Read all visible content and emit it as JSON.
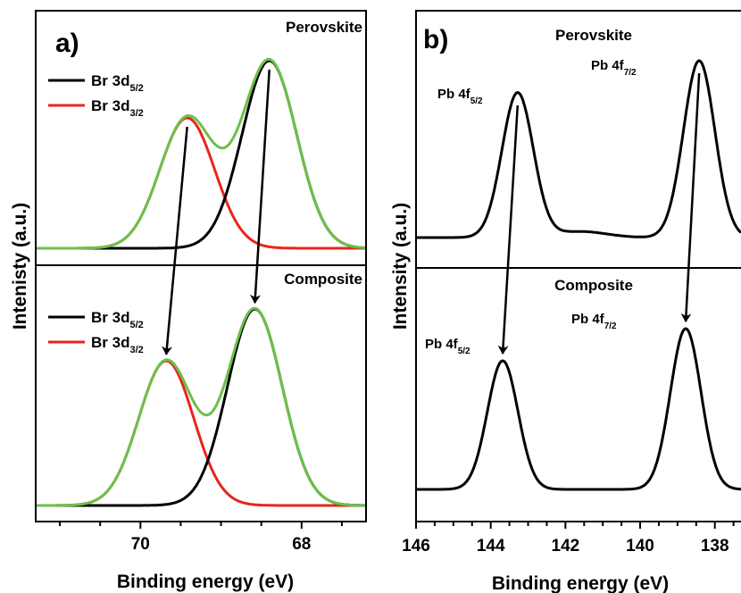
{
  "colors": {
    "sum": "#6cc04a",
    "d52": "#000000",
    "d32": "#e8251c",
    "frame": "#000000"
  },
  "chart_data": [
    {
      "panel_label": "a)",
      "type": "line",
      "xlabel": "Binding energy (eV)",
      "ylabel": "Intenisty (a.u.)",
      "xlim": [
        71.3,
        67.2
      ],
      "x_direction": "reversed",
      "xticks": [
        {
          "value": 70,
          "label": "70"
        },
        {
          "value": 68,
          "label": "68"
        }
      ],
      "subpanels": [
        {
          "title": "Perovskite",
          "legend": [
            {
              "series": "d52",
              "label": "Br 3d",
              "sub": "5/2"
            },
            {
              "series": "d32",
              "label": "Br 3d",
              "sub": "3/2"
            }
          ],
          "peaks": [
            {
              "series": "d52",
              "center": 68.4,
              "amplitude": 1.0,
              "sigma": 0.34
            },
            {
              "series": "d32",
              "center": 69.42,
              "amplitude": 0.695,
              "sigma": 0.34
            }
          ],
          "arrows": [
            {
              "from": 69.42,
              "to": 69.68
            },
            {
              "from": 68.4,
              "to": 68.58
            }
          ]
        },
        {
          "title": "Composite",
          "legend": [
            {
              "series": "d52",
              "label": "Br 3d",
              "sub": "5/2"
            },
            {
              "series": "d32",
              "label": "Br 3d",
              "sub": "3/2"
            }
          ],
          "peaks": [
            {
              "series": "d52",
              "center": 68.58,
              "amplitude": 1.0,
              "sigma": 0.34
            },
            {
              "series": "d32",
              "center": 69.68,
              "amplitude": 0.736,
              "sigma": 0.34
            }
          ]
        }
      ]
    },
    {
      "panel_label": "b)",
      "type": "line",
      "xlabel": "Binding energy (eV)",
      "ylabel": "Intensity (a.u.)",
      "xlim": [
        146.0,
        137.3
      ],
      "x_direction": "reversed",
      "xticks": [
        {
          "value": 146,
          "label": "146"
        },
        {
          "value": 144,
          "label": "144"
        },
        {
          "value": 142,
          "label": "142"
        },
        {
          "value": 140,
          "label": "140"
        },
        {
          "value": 138,
          "label": "138"
        }
      ],
      "subpanels": [
        {
          "title": "Perovskite",
          "peaks": [
            {
              "center": 143.28,
              "amplitude": 0.72,
              "sigma": 0.42,
              "label": "Pb 4f",
              "sub": "5/2"
            },
            {
              "center": 138.42,
              "amplitude": 0.88,
              "sigma": 0.42,
              "label": "Pb 4f",
              "sub": "7/2"
            }
          ],
          "baseline_bump": {
            "center": 141.6,
            "amplitude": 0.03,
            "sigma": 0.7
          },
          "arrows": [
            {
              "from": 143.28,
              "to": 143.68
            },
            {
              "from": 138.42,
              "to": 138.78
            }
          ]
        },
        {
          "title": "Composite",
          "peaks": [
            {
              "center": 143.68,
              "amplitude": 0.6,
              "sigma": 0.41,
              "label": "Pb 4f",
              "sub": "5/2"
            },
            {
              "center": 138.78,
              "amplitude": 0.75,
              "sigma": 0.41,
              "label": "Pb 4f",
              "sub": "7/2"
            }
          ]
        }
      ]
    }
  ]
}
